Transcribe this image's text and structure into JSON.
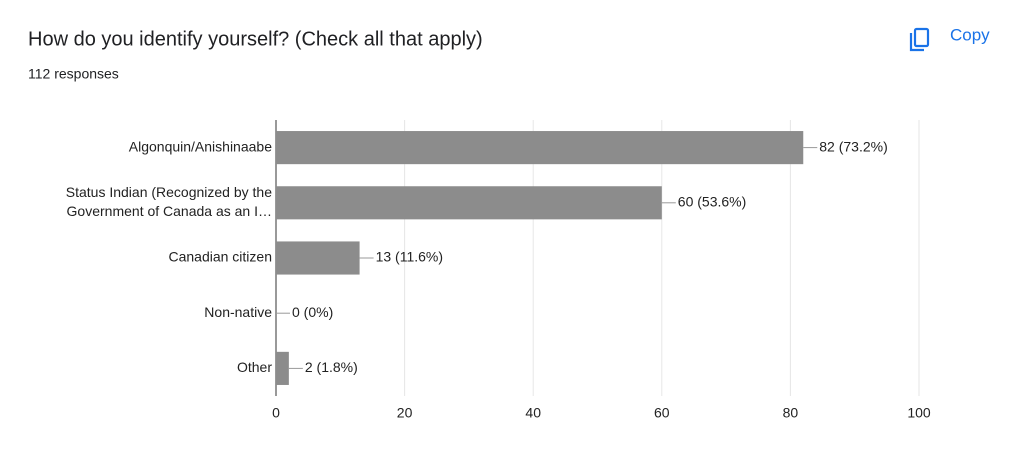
{
  "chart_data": {
    "type": "bar",
    "orientation": "horizontal",
    "title": "How do you identify yourself? (Check all that apply)",
    "subtitle": "112 responses",
    "action": "Copy",
    "categories": [
      [
        "Algonquin/Anishinaabe"
      ],
      [
        "Status Indian (Recognized by the",
        "Government of Canada as an I…"
      ],
      [
        "Canadian citizen"
      ],
      [
        "Non-native"
      ],
      [
        "Other"
      ]
    ],
    "values": [
      82,
      60,
      13,
      0,
      2
    ],
    "value_labels": [
      "82 (73.2%)",
      "60 (53.6%)",
      "13 (11.6%)",
      "0 (0%)",
      "2 (1.8%)"
    ],
    "color": "#8c8c8c",
    "xlim": [
      0,
      100
    ],
    "xticks": [
      0,
      20,
      40,
      60,
      80,
      100
    ],
    "grid": true
  }
}
